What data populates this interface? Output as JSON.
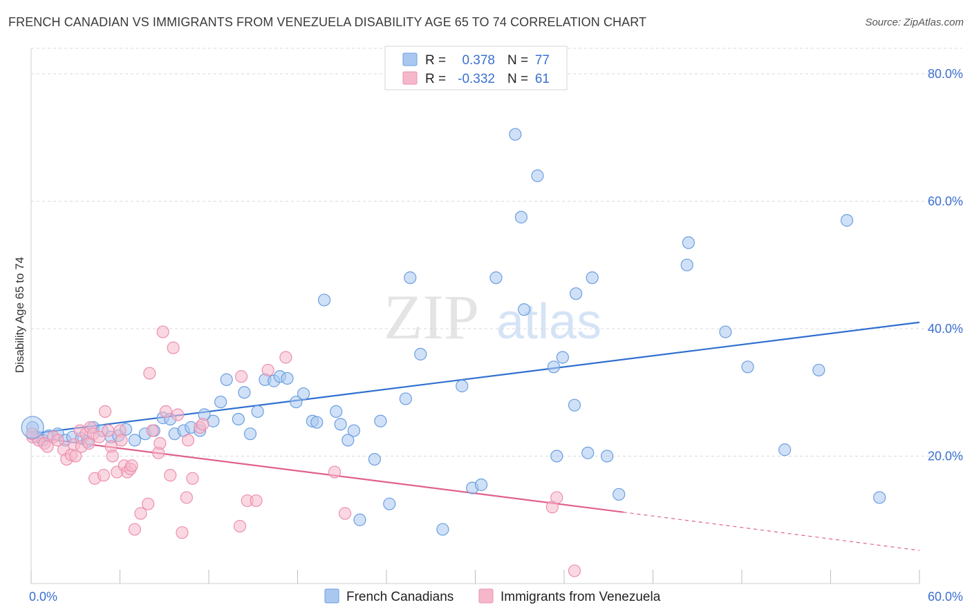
{
  "title": "FRENCH CANADIAN VS IMMIGRANTS FROM VENEZUELA DISABILITY AGE 65 TO 74 CORRELATION CHART",
  "source": "Source: ZipAtlas.com",
  "watermark": {
    "zip": "ZIP",
    "atlas": "atlas"
  },
  "colors": {
    "blue_fill": "#a9c8f0",
    "blue_stroke": "#6a9ee0",
    "blue_line": "#2f6fd0",
    "pink_fill": "#f5b8cb",
    "pink_stroke": "#ec8fae",
    "pink_line": "#e0608c",
    "axis_text": "#3a6fd0",
    "grid": "#d8d8d8"
  },
  "legend": {
    "rows": [
      {
        "r_label": "R =",
        "r_value": "0.378",
        "n_label": "N =",
        "n_value": "77"
      },
      {
        "r_label": "R =",
        "r_value": "-0.332",
        "n_label": "N =",
        "n_value": "61"
      }
    ]
  },
  "chart_data": {
    "type": "scatter",
    "title": "FRENCH CANADIAN VS IMMIGRANTS FROM VENEZUELA DISABILITY AGE 65 TO 74 CORRELATION CHART",
    "xlabel": "",
    "ylabel": "Disability Age 65 to 74",
    "xlim": [
      0,
      60
    ],
    "ylim": [
      0,
      84
    ],
    "x_tick_labels": [
      "0.0%",
      "60.0%"
    ],
    "y_tick_labels": [
      "20.0%",
      "40.0%",
      "60.0%",
      "80.0%"
    ],
    "y_ticks": [
      20,
      40,
      60,
      80
    ],
    "x_minor_ticks": [
      0,
      6,
      12,
      18,
      24,
      30,
      36,
      42,
      48,
      54,
      60
    ],
    "grid": true,
    "legend_position": "top-center",
    "series": [
      {
        "name": "French Canadians",
        "color": "#a9c8f0",
        "trend": {
          "x": [
            0,
            60
          ],
          "y": [
            23.5,
            41.0
          ]
        },
        "points": [
          [
            0.1,
            24.5
          ],
          [
            0.4,
            23.0
          ],
          [
            0.8,
            22.5
          ],
          [
            1.2,
            23.2
          ],
          [
            1.8,
            23.5
          ],
          [
            2.3,
            22.5
          ],
          [
            2.8,
            23.0
          ],
          [
            3.4,
            22.8
          ],
          [
            3.8,
            22.3
          ],
          [
            4.2,
            24.5
          ],
          [
            4.8,
            24.0
          ],
          [
            5.4,
            23.0
          ],
          [
            5.9,
            23.2
          ],
          [
            6.4,
            24.2
          ],
          [
            7.0,
            22.5
          ],
          [
            7.7,
            23.5
          ],
          [
            8.3,
            24.0
          ],
          [
            8.9,
            26.0
          ],
          [
            9.4,
            25.8
          ],
          [
            9.7,
            23.5
          ],
          [
            10.3,
            24.0
          ],
          [
            10.8,
            24.5
          ],
          [
            11.4,
            24.0
          ],
          [
            11.7,
            26.5
          ],
          [
            12.3,
            25.5
          ],
          [
            12.8,
            28.5
          ],
          [
            13.2,
            32.0
          ],
          [
            14.0,
            25.8
          ],
          [
            14.4,
            30.0
          ],
          [
            14.8,
            23.5
          ],
          [
            15.3,
            27.0
          ],
          [
            15.8,
            32.0
          ],
          [
            16.4,
            31.8
          ],
          [
            16.8,
            32.5
          ],
          [
            17.3,
            32.2
          ],
          [
            17.9,
            28.5
          ],
          [
            18.4,
            29.8
          ],
          [
            19.0,
            25.5
          ],
          [
            19.3,
            25.3
          ],
          [
            19.8,
            44.5
          ],
          [
            20.6,
            27.0
          ],
          [
            20.9,
            25.0
          ],
          [
            21.4,
            22.5
          ],
          [
            21.8,
            24.0
          ],
          [
            22.2,
            10.0
          ],
          [
            23.2,
            19.5
          ],
          [
            23.6,
            25.5
          ],
          [
            24.2,
            12.5
          ],
          [
            25.3,
            29.0
          ],
          [
            25.6,
            48.0
          ],
          [
            26.3,
            36.0
          ],
          [
            27.8,
            8.5
          ],
          [
            29.1,
            31.0
          ],
          [
            29.8,
            15.0
          ],
          [
            30.4,
            15.5
          ],
          [
            31.4,
            48.0
          ],
          [
            32.7,
            70.5
          ],
          [
            33.1,
            57.5
          ],
          [
            33.3,
            43.0
          ],
          [
            34.2,
            64.0
          ],
          [
            35.3,
            34.0
          ],
          [
            35.5,
            20.0
          ],
          [
            35.9,
            35.5
          ],
          [
            36.7,
            28.0
          ],
          [
            36.8,
            45.5
          ],
          [
            37.6,
            20.5
          ],
          [
            37.9,
            48.0
          ],
          [
            38.9,
            20.0
          ],
          [
            39.7,
            14.0
          ],
          [
            44.3,
            50.0
          ],
          [
            44.4,
            53.5
          ],
          [
            46.9,
            39.5
          ],
          [
            48.4,
            34.0
          ],
          [
            50.9,
            21.0
          ],
          [
            53.2,
            33.5
          ],
          [
            55.1,
            57.0
          ],
          [
            57.3,
            13.5
          ]
        ]
      },
      {
        "name": "Immigrants from Venezuela",
        "color": "#f5b8cb",
        "trend": {
          "x": [
            0,
            40
          ],
          "y": [
            23.0,
            11.2
          ]
        },
        "trend_dashed": {
          "x": [
            40,
            60
          ],
          "y": [
            11.2,
            5.2
          ]
        },
        "points": [
          [
            0.1,
            23.0
          ],
          [
            0.5,
            22.5
          ],
          [
            0.9,
            22.0
          ],
          [
            1.1,
            21.5
          ],
          [
            1.5,
            23.0
          ],
          [
            1.8,
            22.5
          ],
          [
            2.2,
            21.0
          ],
          [
            2.4,
            19.5
          ],
          [
            2.7,
            20.2
          ],
          [
            2.9,
            21.8
          ],
          [
            3.0,
            20.0
          ],
          [
            3.3,
            24.0
          ],
          [
            3.4,
            21.5
          ],
          [
            3.7,
            23.5
          ],
          [
            3.9,
            22.0
          ],
          [
            4.0,
            24.5
          ],
          [
            4.2,
            23.5
          ],
          [
            4.3,
            16.5
          ],
          [
            4.6,
            23.0
          ],
          [
            4.9,
            17.0
          ],
          [
            5.0,
            27.0
          ],
          [
            5.2,
            24.0
          ],
          [
            5.4,
            21.5
          ],
          [
            5.5,
            20.0
          ],
          [
            5.8,
            17.5
          ],
          [
            6.0,
            24.0
          ],
          [
            6.1,
            22.5
          ],
          [
            6.3,
            18.5
          ],
          [
            6.5,
            17.5
          ],
          [
            6.7,
            18.0
          ],
          [
            6.8,
            18.5
          ],
          [
            7.0,
            8.5
          ],
          [
            7.4,
            11.0
          ],
          [
            7.9,
            12.5
          ],
          [
            8.0,
            33.0
          ],
          [
            8.2,
            24.0
          ],
          [
            8.6,
            20.5
          ],
          [
            8.7,
            22.0
          ],
          [
            8.9,
            39.5
          ],
          [
            9.1,
            27.0
          ],
          [
            9.4,
            17.0
          ],
          [
            9.6,
            37.0
          ],
          [
            9.9,
            26.5
          ],
          [
            10.2,
            8.0
          ],
          [
            10.5,
            13.5
          ],
          [
            10.6,
            22.5
          ],
          [
            10.9,
            16.5
          ],
          [
            11.4,
            24.5
          ],
          [
            11.6,
            25.0
          ],
          [
            14.1,
            9.0
          ],
          [
            14.2,
            32.5
          ],
          [
            14.6,
            13.0
          ],
          [
            15.2,
            13.0
          ],
          [
            16.0,
            33.5
          ],
          [
            17.2,
            35.5
          ],
          [
            20.5,
            17.5
          ],
          [
            21.2,
            11.0
          ],
          [
            35.2,
            12.0
          ],
          [
            35.5,
            13.5
          ],
          [
            36.7,
            2.0
          ],
          [
            0.05,
            23.5
          ]
        ]
      }
    ]
  }
}
